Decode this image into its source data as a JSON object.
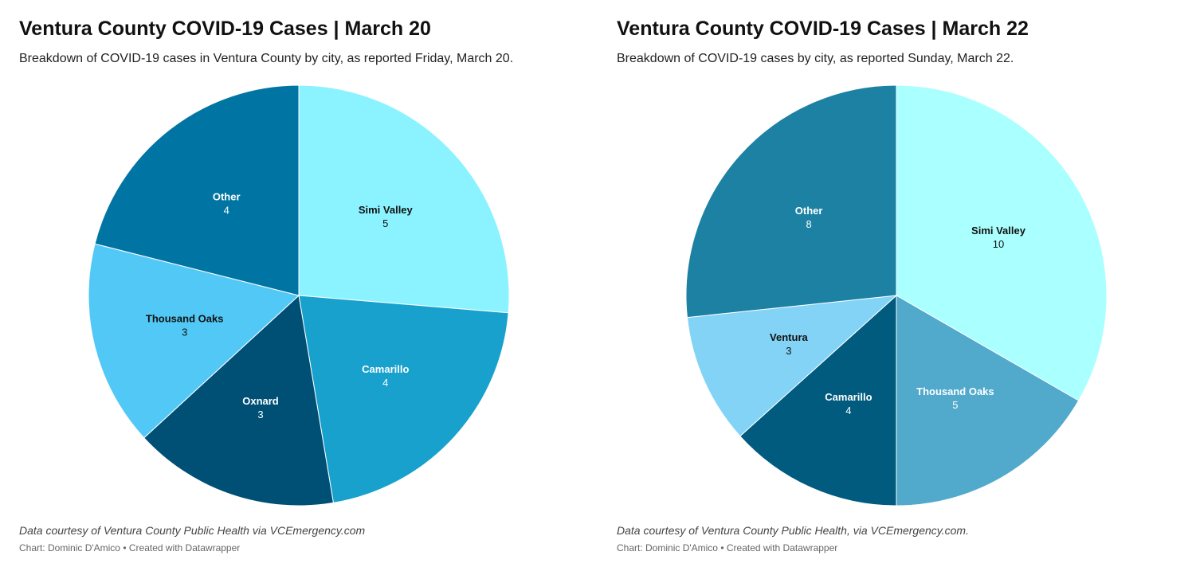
{
  "chart_data": [
    {
      "type": "pie",
      "title": "Ventura County COVID-19 Cases | March 20",
      "subtitle": "Breakdown of COVID-19 cases in Ventura County by city, as reported Friday, March 20.",
      "slices": [
        {
          "label": "Simi Valley",
          "value": 5,
          "color": "#8af3ff",
          "text_color": "#111111"
        },
        {
          "label": "Camarillo",
          "value": 4,
          "color": "#18a1cd",
          "text_color": "#ffffff"
        },
        {
          "label": "Oxnard",
          "value": 3,
          "color": "#005076",
          "text_color": "#ffffff"
        },
        {
          "label": "Thousand Oaks",
          "value": 3,
          "color": "#51c8f5",
          "text_color": "#111111"
        },
        {
          "label": "Other",
          "value": 4,
          "color": "#0075a3",
          "text_color": "#ffffff"
        }
      ],
      "source": "Data courtesy of Ventura County Public Health via VCEmergency.com",
      "credit": "Chart: Dominic D'Amico • Created with Datawrapper"
    },
    {
      "type": "pie",
      "title": "Ventura County COVID-19 Cases | March 22",
      "subtitle": "Breakdown of COVID-19 cases by city, as reported Sunday, March 22.",
      "slices": [
        {
          "label": "Simi Valley",
          "value": 10,
          "color": "#aaffff",
          "text_color": "#111111"
        },
        {
          "label": "Thousand Oaks",
          "value": 5,
          "color": "#51a9cc",
          "text_color": "#ffffff"
        },
        {
          "label": "Camarillo",
          "value": 4,
          "color": "#005b7e",
          "text_color": "#ffffff"
        },
        {
          "label": "Ventura",
          "value": 3,
          "color": "#82d3f5",
          "text_color": "#111111"
        },
        {
          "label": "Other",
          "value": 8,
          "color": "#1c81a2",
          "text_color": "#ffffff"
        }
      ],
      "source": "Data courtesy of Ventura County Public Health, via VCEmergency.com.",
      "credit": "Chart: Dominic D'Amico • Created with Datawrapper"
    }
  ]
}
